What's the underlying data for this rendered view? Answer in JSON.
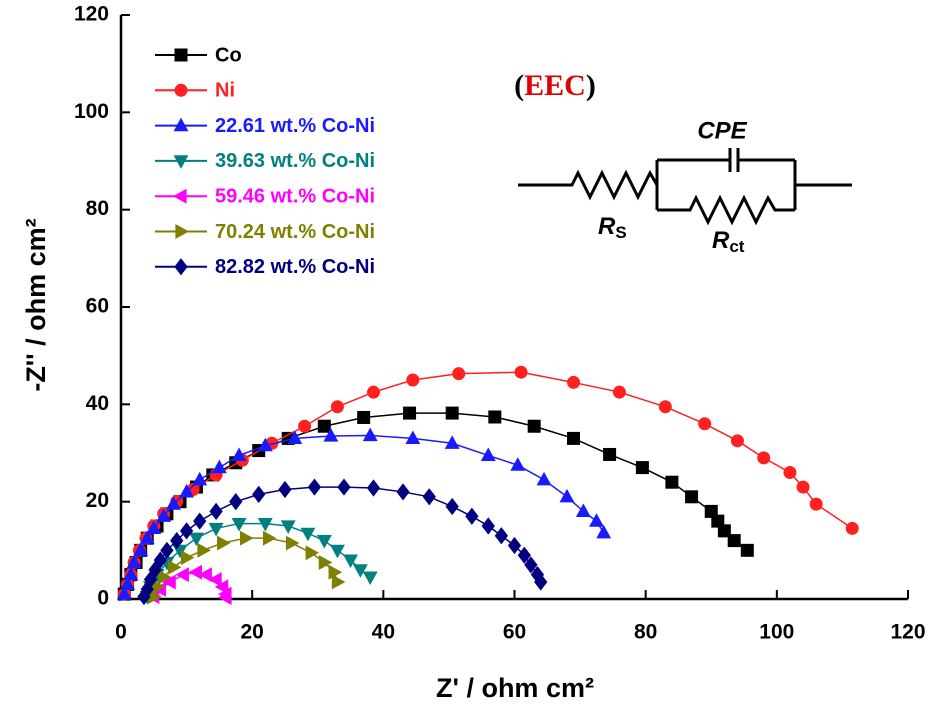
{
  "chart_data": {
    "type": "line",
    "x_label": "Z' / ohm cm²",
    "y_label": "-Z'' / ohm cm²",
    "xlim": [
      0,
      120
    ],
    "ylim": [
      0,
      120
    ],
    "xticks": [
      0,
      20,
      40,
      60,
      80,
      100,
      120
    ],
    "yticks": [
      0,
      20,
      40,
      60,
      80,
      100,
      120
    ],
    "legend": "upper left",
    "eec_label": [
      "(",
      "EEC",
      ")"
    ],
    "circuit": {
      "cpe": "CPE",
      "rs": [
        "R",
        "S"
      ],
      "rct": [
        "R",
        "ct"
      ]
    },
    "series": [
      {
        "name": "Co",
        "color": "#000000",
        "marker": "square",
        "x": [
          0.5,
          1,
          1.5,
          2.3,
          3,
          4,
          5.5,
          7,
          9,
          11.5,
          14,
          17.5,
          21,
          25.5,
          31,
          37,
          44,
          50.5,
          57,
          63,
          69,
          74.5,
          79.5,
          84,
          87,
          90,
          91,
          92,
          93.5,
          95.5
        ],
        "values": [
          1,
          3,
          5,
          7.5,
          10,
          12.5,
          15,
          17.5,
          20,
          23,
          25.5,
          28,
          30.5,
          33,
          35.5,
          37.3,
          38.2,
          38.2,
          37.4,
          35.5,
          33,
          29.7,
          27,
          24,
          21,
          18,
          16,
          14,
          12,
          10
        ]
      },
      {
        "name": "Ni",
        "color": "#ff2020",
        "marker": "circle",
        "x": [
          0.5,
          1,
          1.5,
          2,
          2.8,
          3.8,
          5,
          6.5,
          8.5,
          11,
          14.5,
          18.5,
          23,
          28,
          33,
          38.5,
          44.5,
          51.5,
          61,
          69,
          76,
          83,
          89,
          94,
          98,
          102,
          104,
          106,
          111.5
        ],
        "values": [
          1,
          3,
          5,
          7.5,
          10,
          12.5,
          15,
          17.5,
          20,
          22.5,
          25.5,
          28.5,
          32,
          35.5,
          39.5,
          42.5,
          45,
          46.3,
          46.6,
          44.5,
          42.5,
          39.5,
          36,
          32.5,
          29,
          26,
          23,
          19.5,
          14.5
        ]
      },
      {
        "name": "22.61 wt.% Co-Ni",
        "color": "#1a1aff",
        "marker": "triangle-up",
        "x": [
          0.5,
          1,
          1.5,
          2,
          3,
          4,
          5,
          6.5,
          8,
          10,
          12,
          15,
          18,
          22,
          26.5,
          32,
          38,
          44.5,
          50.5,
          56,
          60.5,
          64.5,
          68,
          70.5,
          72.5,
          73.6
        ],
        "values": [
          1,
          3,
          5,
          7.5,
          10,
          12.5,
          14.5,
          17,
          19.5,
          22,
          24.5,
          27,
          29.5,
          31.5,
          33,
          33.5,
          33.6,
          33,
          32,
          29.5,
          27.5,
          24.5,
          21,
          18,
          16,
          13.6
        ]
      },
      {
        "name": "39.63 wt.% Co-Ni",
        "color": "#008080",
        "marker": "triangle-down",
        "x": [
          4,
          4.5,
          5.5,
          7,
          9,
          11.5,
          14.5,
          18,
          22,
          25.5,
          28.5,
          31,
          33,
          35,
          36.5,
          38
        ],
        "values": [
          0.5,
          2.5,
          5,
          7.5,
          10,
          12.5,
          14.5,
          15.5,
          15.5,
          15,
          13.5,
          12,
          10,
          8,
          6,
          4.5
        ]
      },
      {
        "name": "59.46 wt.% Co-Ni",
        "color": "#ff00ff",
        "marker": "triangle-left",
        "x": [
          5,
          6,
          7.5,
          9.5,
          11.5,
          13,
          14.5,
          15.5,
          16,
          16
        ],
        "values": [
          0.5,
          2,
          3.5,
          5,
          5.5,
          5,
          4,
          2.5,
          1,
          0.3
        ]
      },
      {
        "name": "70.24 wt.% Co-Ni",
        "color": "#808000",
        "marker": "triangle-right",
        "x": [
          5,
          5.5,
          6.5,
          8,
          10,
          12.5,
          15.5,
          19,
          22.5,
          26,
          29,
          31,
          32.5,
          33
        ],
        "values": [
          0.5,
          2.5,
          4.5,
          6.5,
          8.5,
          10,
          11.5,
          12.5,
          12.5,
          11.5,
          9.5,
          7.5,
          5.5,
          3.5
        ]
      },
      {
        "name": "82.82 wt.% Co-Ni",
        "color": "#000080",
        "marker": "diamond",
        "x": [
          3.5,
          4,
          4.5,
          5.2,
          6,
          7,
          8.5,
          10,
          12,
          14.5,
          17.5,
          21,
          25,
          29.5,
          34,
          38.5,
          43,
          47,
          50.5,
          53.5,
          56,
          58,
          60,
          61.5,
          62.5,
          63.5,
          64
        ],
        "values": [
          0.5,
          2,
          4,
          6,
          8,
          10,
          12,
          14,
          16,
          18,
          20,
          21.5,
          22.5,
          23,
          23,
          22.8,
          22,
          21,
          19,
          17,
          15,
          13,
          11,
          9,
          7,
          5,
          3.5
        ]
      }
    ]
  }
}
